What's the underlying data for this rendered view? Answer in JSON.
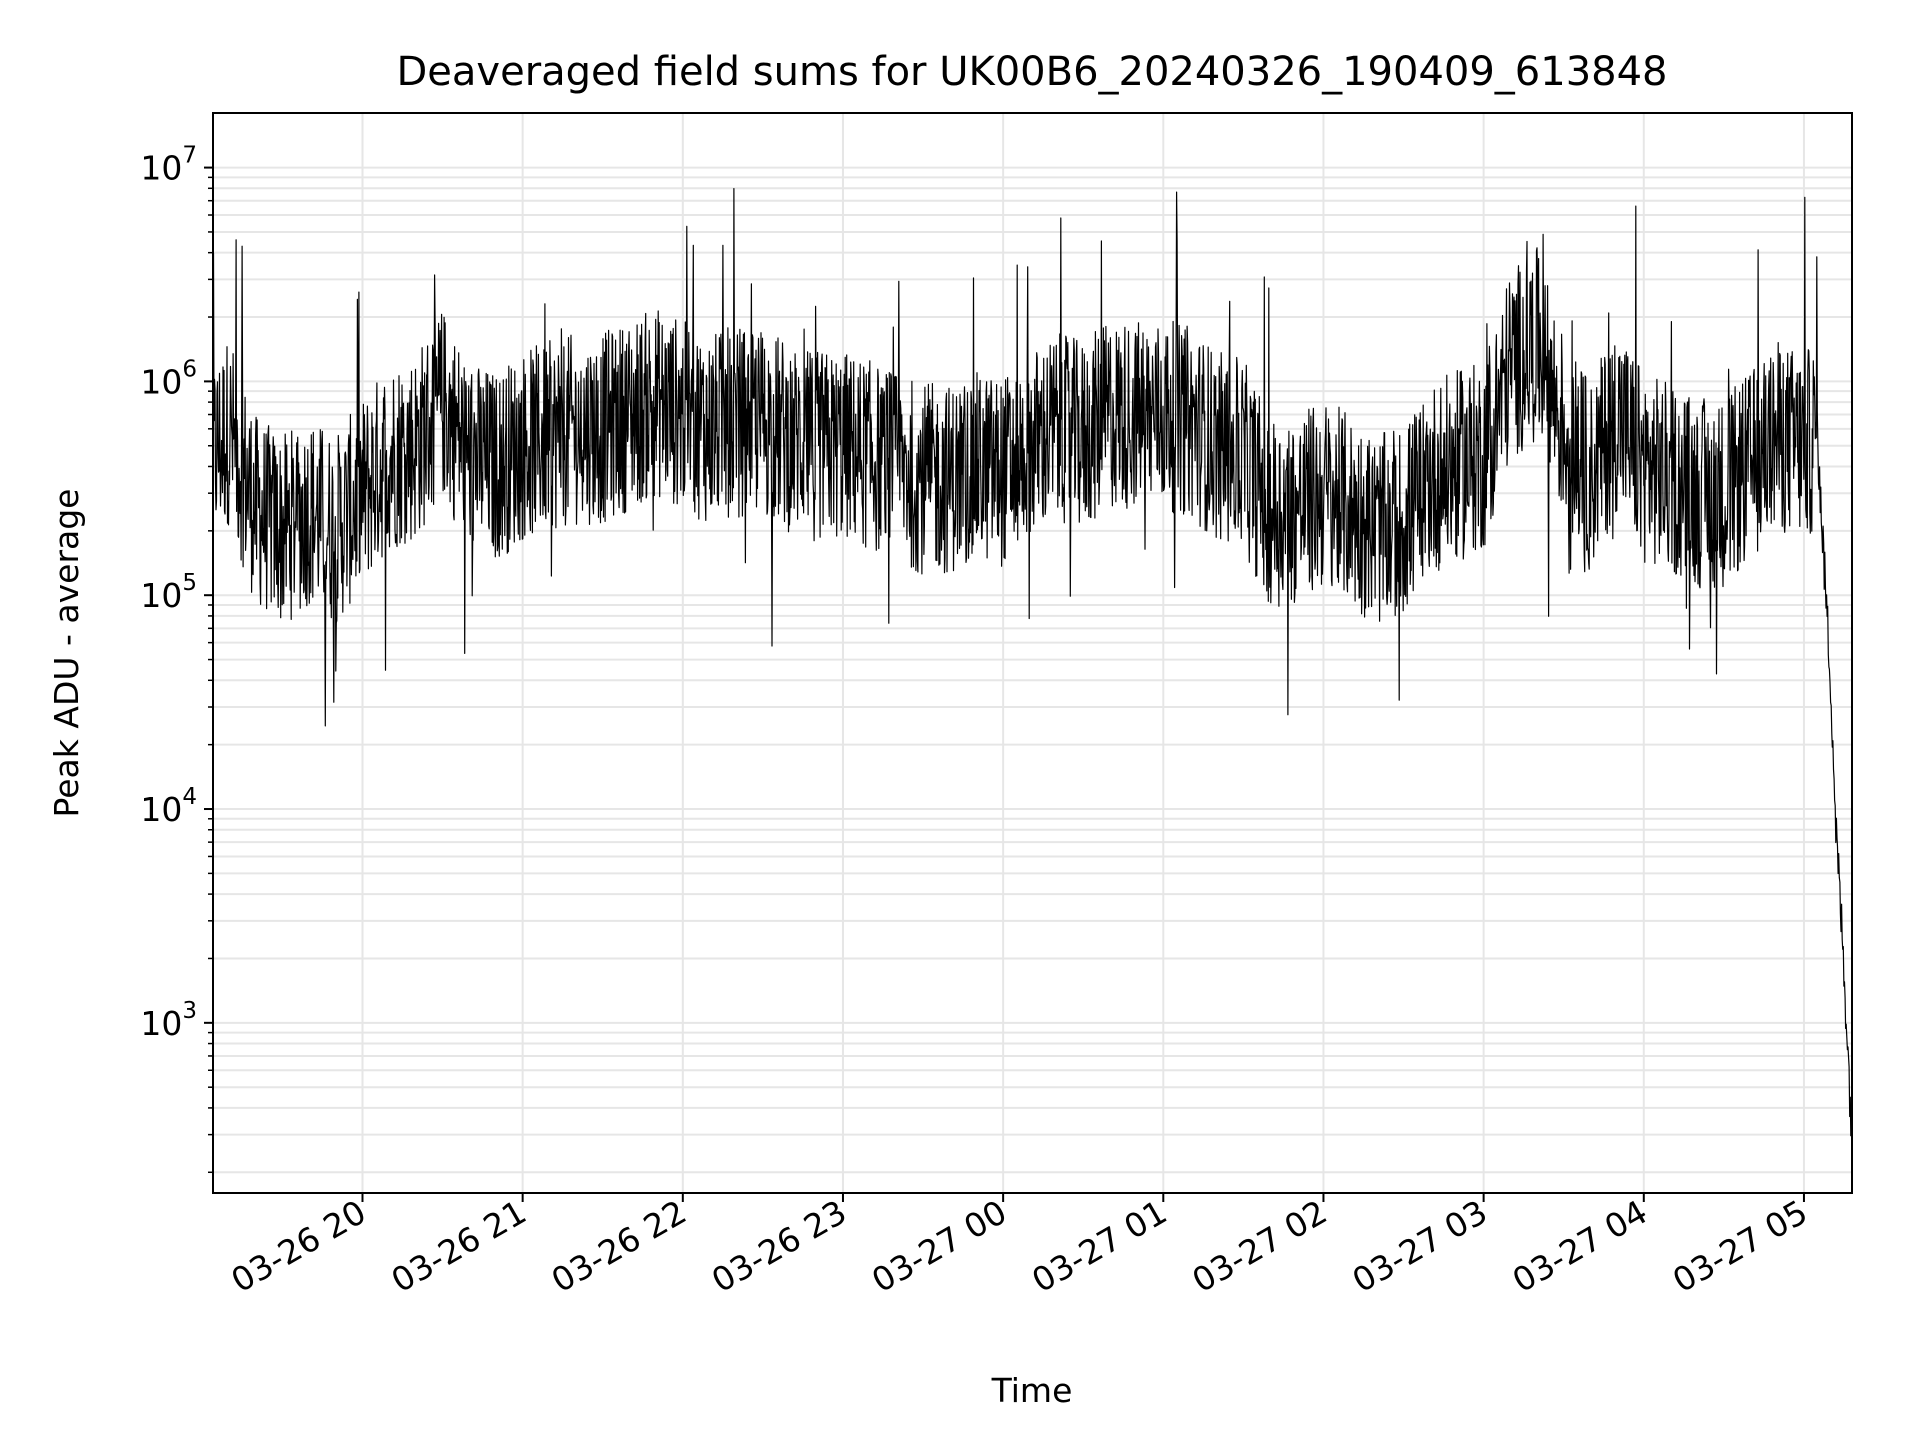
{
  "chart_data": {
    "type": "line",
    "title": "Deaveraged field sums for UK00B6_20240326_190409_613848",
    "xlabel": "Time",
    "ylabel": "Peak ADU - average",
    "yscale": "log",
    "ylim": [
      160,
      18000000
    ],
    "xlim": [
      "2024-03-26 19:04",
      "2024-03-27 05:18"
    ],
    "grid": true,
    "line_color": "#000000",
    "x_ticks": [
      {
        "value": "2024-03-26 20:00",
        "label": "03-26 20"
      },
      {
        "value": "2024-03-26 21:00",
        "label": "03-26 21"
      },
      {
        "value": "2024-03-26 22:00",
        "label": "03-26 22"
      },
      {
        "value": "2024-03-26 23:00",
        "label": "03-26 23"
      },
      {
        "value": "2024-03-27 00:00",
        "label": "03-27 00"
      },
      {
        "value": "2024-03-27 01:00",
        "label": "03-27 01"
      },
      {
        "value": "2024-03-27 02:00",
        "label": "03-27 02"
      },
      {
        "value": "2024-03-27 03:00",
        "label": "03-27 03"
      },
      {
        "value": "2024-03-27 04:00",
        "label": "03-27 04"
      },
      {
        "value": "2024-03-27 05:00",
        "label": "03-27 05"
      }
    ],
    "y_ticks": [
      {
        "value": 1000,
        "base": "10",
        "exp": "3"
      },
      {
        "value": 10000,
        "base": "10",
        "exp": "4"
      },
      {
        "value": 100000,
        "base": "10",
        "exp": "5"
      },
      {
        "value": 1000000,
        "base": "10",
        "exp": "6"
      },
      {
        "value": 10000000,
        "base": "10",
        "exp": "7"
      }
    ],
    "series": [
      {
        "x": [
          "2024-03-26 19:04",
          "2024-03-26 19:10",
          "2024-03-26 19:20",
          "2024-03-26 19:30",
          "2024-03-26 19:40",
          "2024-03-26 19:50",
          "2024-03-26 20:00",
          "2024-03-26 20:10",
          "2024-03-26 20:20",
          "2024-03-26 20:30",
          "2024-03-26 20:40",
          "2024-03-26 20:50",
          "2024-03-26 21:00",
          "2024-03-26 21:10",
          "2024-03-26 21:20",
          "2024-03-26 21:30",
          "2024-03-26 21:40",
          "2024-03-26 21:50",
          "2024-03-26 22:00",
          "2024-03-26 22:10",
          "2024-03-26 22:20",
          "2024-03-26 22:30",
          "2024-03-26 22:40",
          "2024-03-26 22:50",
          "2024-03-26 23:00",
          "2024-03-26 23:10",
          "2024-03-26 23:20",
          "2024-03-26 23:30",
          "2024-03-26 23:40",
          "2024-03-26 23:50",
          "2024-03-27 00:00",
          "2024-03-27 00:10",
          "2024-03-27 00:20",
          "2024-03-27 00:30",
          "2024-03-27 00:40",
          "2024-03-27 00:50",
          "2024-03-27 01:00",
          "2024-03-27 01:10",
          "2024-03-27 01:20",
          "2024-03-27 01:30",
          "2024-03-27 01:40",
          "2024-03-27 01:50",
          "2024-03-27 02:00",
          "2024-03-27 02:10",
          "2024-03-27 02:20",
          "2024-03-27 02:30",
          "2024-03-27 02:40",
          "2024-03-27 02:50",
          "2024-03-27 03:00",
          "2024-03-27 03:10",
          "2024-03-27 03:20",
          "2024-03-27 03:30",
          "2024-03-27 03:40",
          "2024-03-27 03:50",
          "2024-03-27 04:00",
          "2024-03-27 04:10",
          "2024-03-27 04:20",
          "2024-03-27 04:30",
          "2024-03-27 04:40",
          "2024-03-27 04:50",
          "2024-03-27 05:00",
          "2024-03-27 05:05",
          "2024-03-27 05:08",
          "2024-03-27 05:10",
          "2024-03-27 05:12",
          "2024-03-27 05:14",
          "2024-03-27 05:16",
          "2024-03-27 05:18"
        ],
        "y": [
          450000,
          600000,
          250000,
          200000,
          250000,
          200000,
          300000,
          450000,
          500000,
          800000,
          450000,
          400000,
          500000,
          550000,
          600000,
          600000,
          700000,
          800000,
          700000,
          600000,
          650000,
          650000,
          550000,
          500000,
          500000,
          450000,
          400000,
          350000,
          350000,
          400000,
          380000,
          500000,
          600000,
          550000,
          700000,
          700000,
          700000,
          650000,
          500000,
          450000,
          250000,
          250000,
          300000,
          250000,
          200000,
          220000,
          350000,
          400000,
          450000,
          1200000,
          1500000,
          600000,
          350000,
          700000,
          400000,
          350000,
          300000,
          300000,
          400000,
          550000,
          500000,
          550000,
          110000,
          40000,
          8000,
          3000,
          1000,
          280
        ]
      }
    ]
  }
}
